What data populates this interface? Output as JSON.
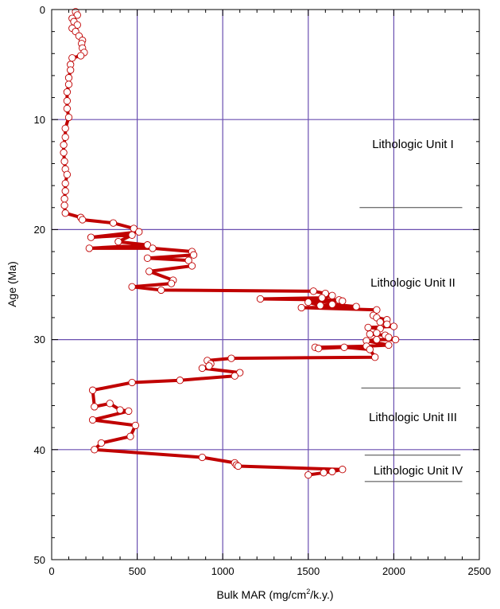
{
  "chart_data": {
    "type": "line",
    "xlabel_parts": [
      "Bulk MAR (mg/cm",
      "2",
      "/k.y.)"
    ],
    "ylabel": "Age (Ma)",
    "xlim": [
      0,
      2500
    ],
    "ylim": [
      0,
      50
    ],
    "y_inverted": true,
    "grid": true,
    "x_ticks": [
      "0",
      "500",
      "1000",
      "1500",
      "2000",
      "2500"
    ],
    "y_ticks": [
      "0",
      "10",
      "20",
      "30",
      "40",
      "50"
    ],
    "colors": {
      "line": "#c00000",
      "marker_edge": "#c00000",
      "marker_fill": "#ffffff",
      "grid": "#6a4fb0"
    },
    "series": [
      {
        "points": [
          [
            140,
            0.2
          ],
          [
            150,
            0.5
          ],
          [
            120,
            0.8
          ],
          [
            130,
            1.1
          ],
          [
            150,
            1.4
          ],
          [
            120,
            1.7
          ],
          [
            140,
            2.0
          ],
          [
            160,
            2.4
          ],
          [
            180,
            2.8
          ],
          [
            175,
            3.1
          ],
          [
            180,
            3.5
          ],
          [
            190,
            3.9
          ],
          [
            170,
            4.2
          ],
          [
            120,
            4.4
          ],
          [
            110,
            5.0
          ],
          [
            110,
            5.5
          ],
          [
            100,
            6.2
          ],
          [
            100,
            6.8
          ],
          [
            90,
            7.5
          ],
          [
            90,
            8.3
          ],
          [
            90,
            9.0
          ],
          [
            100,
            9.8
          ],
          [
            80,
            10.8
          ],
          [
            80,
            11.6
          ],
          [
            70,
            12.3
          ],
          [
            70,
            13.0
          ],
          [
            75,
            13.8
          ],
          [
            80,
            14.5
          ],
          [
            90,
            15.0
          ],
          [
            80,
            15.8
          ],
          [
            80,
            16.5
          ],
          [
            75,
            17.2
          ],
          [
            75,
            17.8
          ],
          [
            80,
            18.5
          ],
          [
            170,
            18.9
          ],
          [
            180,
            19.1
          ],
          [
            360,
            19.4
          ],
          [
            480,
            19.9
          ],
          [
            510,
            20.2
          ],
          [
            230,
            20.7
          ],
          [
            470,
            20.5
          ],
          [
            390,
            21.1
          ],
          [
            560,
            21.4
          ],
          [
            220,
            21.7
          ],
          [
            590,
            21.7
          ],
          [
            820,
            22.0
          ],
          [
            830,
            22.3
          ],
          [
            560,
            22.6
          ],
          [
            800,
            22.8
          ],
          [
            820,
            23.3
          ],
          [
            570,
            23.8
          ],
          [
            710,
            24.6
          ],
          [
            700,
            24.9
          ],
          [
            470,
            25.2
          ],
          [
            640,
            25.5
          ],
          [
            1530,
            25.6
          ],
          [
            1600,
            25.8
          ],
          [
            1640,
            26.0
          ],
          [
            1580,
            26.2
          ],
          [
            1220,
            26.3
          ],
          [
            1680,
            26.4
          ],
          [
            1700,
            26.5
          ],
          [
            1500,
            26.6
          ],
          [
            1570,
            26.9
          ],
          [
            1640,
            26.8
          ],
          [
            1780,
            27.0
          ],
          [
            1460,
            27.1
          ],
          [
            1900,
            27.3
          ],
          [
            1880,
            27.8
          ],
          [
            1900,
            28.0
          ],
          [
            1960,
            28.2
          ],
          [
            1920,
            28.4
          ],
          [
            1960,
            28.6
          ],
          [
            2000,
            28.8
          ],
          [
            1850,
            28.9
          ],
          [
            1920,
            29.0
          ],
          [
            1900,
            29.4
          ],
          [
            1860,
            29.5
          ],
          [
            1950,
            29.6
          ],
          [
            1970,
            29.8
          ],
          [
            2010,
            30.0
          ],
          [
            1900,
            30.0
          ],
          [
            1840,
            30.1
          ],
          [
            1970,
            30.5
          ],
          [
            1840,
            30.6
          ],
          [
            1540,
            30.7
          ],
          [
            1560,
            30.8
          ],
          [
            1710,
            30.7
          ],
          [
            1860,
            30.9
          ],
          [
            1890,
            31.6
          ],
          [
            1050,
            31.7
          ],
          [
            910,
            31.9
          ],
          [
            930,
            32.2
          ],
          [
            920,
            32.4
          ],
          [
            880,
            32.6
          ],
          [
            1100,
            33.0
          ],
          [
            1070,
            33.3
          ],
          [
            750,
            33.7
          ],
          [
            470,
            33.9
          ],
          [
            240,
            34.6
          ],
          [
            250,
            36.1
          ],
          [
            340,
            35.8
          ],
          [
            400,
            36.4
          ],
          [
            450,
            36.5
          ],
          [
            240,
            37.3
          ],
          [
            490,
            37.8
          ],
          [
            460,
            38.8
          ],
          [
            290,
            39.4
          ],
          [
            250,
            40.0
          ],
          [
            880,
            40.7
          ],
          [
            1070,
            41.2
          ],
          [
            1080,
            41.4
          ],
          [
            1090,
            41.5
          ],
          [
            1700,
            41.8
          ],
          [
            1640,
            42.0
          ],
          [
            1590,
            42.1
          ],
          [
            1500,
            42.3
          ]
        ]
      }
    ],
    "annotations": [
      {
        "text": "Lithologic Unit I",
        "x": 2020,
        "y": 12.2
      },
      {
        "text": "Lithologic Unit II",
        "x": 2020,
        "y": 24.9
      },
      {
        "text": "Lithologic Unit III",
        "x": 2020,
        "y": 38.2
      },
      {
        "text": "Lithologic Unit IV",
        "x": 2050,
        "y": 41.9
      }
    ],
    "unit_boundaries": [
      {
        "y": 18.0,
        "x_start": 1800,
        "x_end": 2400
      },
      {
        "y": 34.4,
        "x_start": 1810,
        "x_end": 2390
      },
      {
        "y": 40.5,
        "x_start": 1830,
        "x_end": 2390
      },
      {
        "y": 42.9,
        "x_start": 1830,
        "x_end": 2400
      }
    ]
  }
}
